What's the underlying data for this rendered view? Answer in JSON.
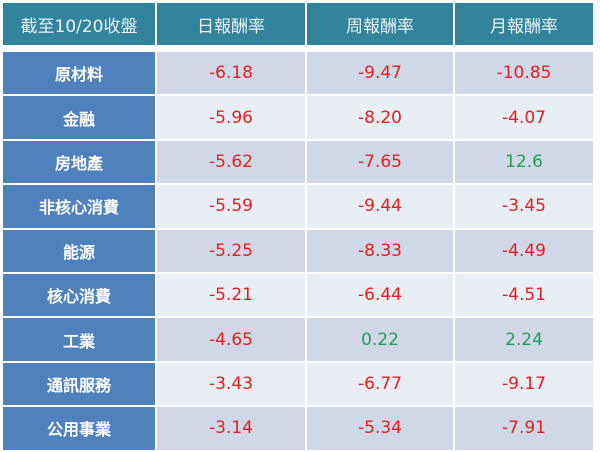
{
  "table": {
    "headers": [
      "截至10/20收盤",
      "日報酬率",
      "周報酬率",
      "月報酬率"
    ],
    "rows": [
      {
        "sector": "原材料",
        "daily": "-6.18",
        "weekly": "-9.47",
        "monthly": "-10.85"
      },
      {
        "sector": "金融",
        "daily": "-5.96",
        "weekly": "-8.20",
        "monthly": "-4.07"
      },
      {
        "sector": "房地產",
        "daily": "-5.62",
        "weekly": "-7.65",
        "monthly": "12.6"
      },
      {
        "sector": "非核心消費",
        "daily": "-5.59",
        "weekly": "-9.44",
        "monthly": "-3.45"
      },
      {
        "sector": "能源",
        "daily": "-5.25",
        "weekly": "-8.33",
        "monthly": "-4.49"
      },
      {
        "sector": "核心消費",
        "daily": "-5.21",
        "weekly": "-6.44",
        "monthly": "-4.51"
      },
      {
        "sector": "工業",
        "daily": "-4.65",
        "weekly": "0.22",
        "monthly": "2.24"
      },
      {
        "sector": "通訊服務",
        "daily": "-3.43",
        "weekly": "-6.77",
        "monthly": "-9.17"
      },
      {
        "sector": "公用事業",
        "daily": "-3.14",
        "weekly": "-5.34",
        "monthly": "-7.91"
      }
    ]
  },
  "colors": {
    "header_bg": "#31849b",
    "label_bg": "#4f81bd",
    "row_odd_bg": "#d0d8e8",
    "row_even_bg": "#e9edf4",
    "negative": "#e02020",
    "positive": "#1f9e4f"
  }
}
